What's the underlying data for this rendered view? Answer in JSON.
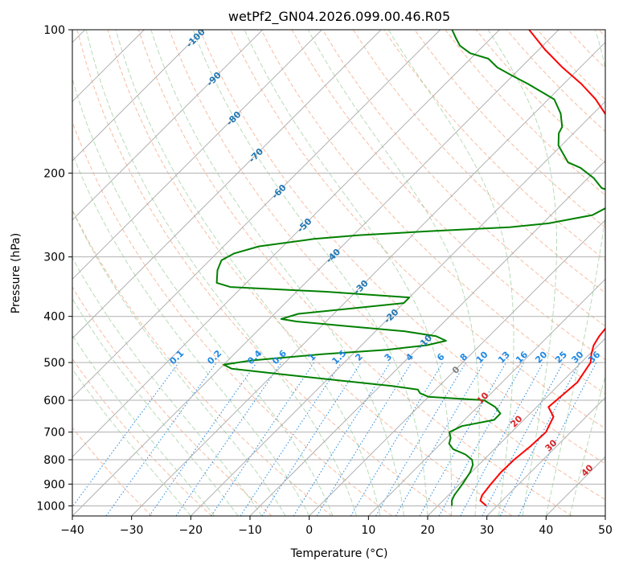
{
  "chart_data": {
    "type": "line",
    "subtype": "skew-t",
    "title": "wetPf2_GN04.2026.099.00.46.R05",
    "xlabel": "Temperature (°C)",
    "ylabel": "Pressure (hPa)",
    "xlim": [
      -40,
      50
    ],
    "ylim": [
      1050,
      100
    ],
    "skew_deg_per_decade": 45,
    "x_ticks": [
      -40,
      -30,
      -20,
      -10,
      0,
      10,
      20,
      30,
      40,
      50
    ],
    "x_tick_labels": [
      "−40",
      "−30",
      "−20",
      "−10",
      "0",
      "10",
      "20",
      "30",
      "40",
      "50"
    ],
    "y_ticks": [
      100,
      200,
      300,
      400,
      500,
      600,
      700,
      800,
      900,
      1000
    ],
    "y_tick_labels": [
      "100",
      "200",
      "300",
      "400",
      "500",
      "600",
      "700",
      "800",
      "900",
      "1000"
    ],
    "grid": true,
    "colors": {
      "temperature": "#ff0000",
      "dewpoint": "#008000",
      "isotherm_label": "#1f77b4",
      "mixing_ratio": "#1e88e5",
      "dry_adiabat": "#f4a582",
      "moist_adiabat": "#99cc99",
      "moist_adiabat_label": "#d62728",
      "grid": "#b0b0b0"
    },
    "series": [
      {
        "name": "Temperature",
        "points": [
          [
            1000,
            28.2
          ],
          [
            975,
            26.3
          ],
          [
            950,
            25.7
          ],
          [
            900,
            25.3
          ],
          [
            850,
            25.0
          ],
          [
            800,
            25.1
          ],
          [
            750,
            25.6
          ],
          [
            700,
            25.8
          ],
          [
            650,
            24.5
          ],
          [
            620,
            22.0
          ],
          [
            600,
            22.2
          ],
          [
            550,
            22.7
          ],
          [
            500,
            21.6
          ],
          [
            480,
            20.3
          ],
          [
            460,
            19.2
          ],
          [
            440,
            18.6
          ],
          [
            420,
            18.3
          ],
          [
            400,
            17.6
          ],
          [
            380,
            15.9
          ],
          [
            360,
            14.5
          ],
          [
            340,
            13.1
          ],
          [
            320,
            11.8
          ],
          [
            300,
            10.0
          ],
          [
            280,
            7.5
          ],
          [
            260,
            5.6
          ],
          [
            240,
            2.5
          ],
          [
            220,
            -1.0
          ],
          [
            200,
            -4.9
          ],
          [
            180,
            -9.0
          ],
          [
            160,
            -14.5
          ],
          [
            150,
            -18.0
          ],
          [
            140,
            -22.0
          ],
          [
            130,
            -27.0
          ],
          [
            120,
            -33.0
          ],
          [
            110,
            -39.0
          ],
          [
            100,
            -45.0
          ]
        ]
      },
      {
        "name": "Dewpoint",
        "points": [
          [
            1000,
            22.4
          ],
          [
            975,
            21.5
          ],
          [
            950,
            21.0
          ],
          [
            900,
            20.5
          ],
          [
            850,
            19.8
          ],
          [
            820,
            19.0
          ],
          [
            800,
            18.0
          ],
          [
            780,
            16.0
          ],
          [
            760,
            13.0
          ],
          [
            740,
            11.4
          ],
          [
            720,
            10.7
          ],
          [
            700,
            9.5
          ],
          [
            680,
            10.6
          ],
          [
            660,
            15.0
          ],
          [
            640,
            15.0
          ],
          [
            620,
            13.0
          ],
          [
            600,
            10.0
          ],
          [
            590,
            0.0
          ],
          [
            580,
            -2.0
          ],
          [
            570,
            -3.0
          ],
          [
            560,
            -8.0
          ],
          [
            545,
            -18.0
          ],
          [
            530,
            -28.0
          ],
          [
            515,
            -38.0
          ],
          [
            505,
            -40.0
          ],
          [
            495,
            -36.0
          ],
          [
            480,
            -25.0
          ],
          [
            470,
            -15.0
          ],
          [
            460,
            -9.0
          ],
          [
            450,
            -6.5
          ],
          [
            440,
            -9.0
          ],
          [
            430,
            -15.0
          ],
          [
            420,
            -25.0
          ],
          [
            410,
            -35.0
          ],
          [
            405,
            -38.0
          ],
          [
            395,
            -36.0
          ],
          [
            385,
            -28.0
          ],
          [
            375,
            -20.0
          ],
          [
            365,
            -20.0
          ],
          [
            355,
            -35.0
          ],
          [
            347,
            -52.0
          ],
          [
            340,
            -55.0
          ],
          [
            320,
            -57.0
          ],
          [
            305,
            -58.0
          ],
          [
            295,
            -57.0
          ],
          [
            285,
            -54.0
          ],
          [
            275,
            -46.0
          ],
          [
            270,
            -39.0
          ],
          [
            265,
            -28.0
          ],
          [
            260,
            -15.0
          ],
          [
            255,
            -9.0
          ],
          [
            245,
            -3.0
          ],
          [
            230,
            -1.0
          ],
          [
            222,
            -1.5
          ],
          [
            215,
            -6.0
          ],
          [
            205,
            -9.0
          ],
          [
            195,
            -13.0
          ],
          [
            190,
            -16.0
          ],
          [
            175,
            -20.5
          ],
          [
            165,
            -22.5
          ],
          [
            160,
            -23.0
          ],
          [
            150,
            -25.5
          ],
          [
            140,
            -29.0
          ],
          [
            130,
            -36.0
          ],
          [
            125,
            -40.0
          ],
          [
            120,
            -44.0
          ],
          [
            115,
            -47.0
          ],
          [
            112,
            -51.0
          ],
          [
            108,
            -54.0
          ],
          [
            104,
            -56.0
          ],
          [
            100,
            -58.0
          ]
        ]
      }
    ],
    "isotherm_labels": [
      "-100",
      "-90",
      "-80",
      "-70",
      "-60",
      "-50",
      "-40",
      "-30",
      "-20",
      "-10",
      "0"
    ],
    "mixing_ratio_labels": [
      "0.1",
      "0.2",
      "0.4",
      "0.6",
      "1",
      "1.5",
      "2",
      "3",
      "4",
      "6",
      "8",
      "10",
      "13",
      "16",
      "20",
      "25",
      "30",
      "36"
    ],
    "moist_adiabat_labels": [
      "10",
      "20",
      "30",
      "40"
    ]
  }
}
